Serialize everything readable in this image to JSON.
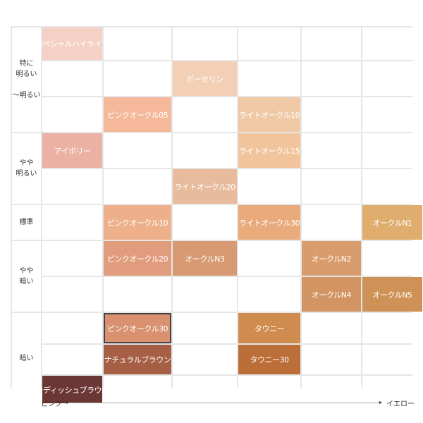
{
  "row_groups": [
    {
      "label": "特に\n明るい\n\n〜明るい",
      "rows": 3
    },
    {
      "label": "やや\n明るい",
      "rows": 2
    },
    {
      "label": "標準",
      "rows": 1
    },
    {
      "label": "やや\n暗い",
      "rows": 2
    },
    {
      "label": "暗い",
      "rows": 3
    }
  ],
  "grid_rows": [
    [
      {
        "name": "スペシャルハイライト",
        "color": "#f5d0c4"
      },
      null,
      null,
      null,
      null,
      null
    ],
    [
      null,
      null,
      {
        "name": "ポーセリン",
        "color": "#f3cfb5"
      },
      null,
      null,
      null
    ],
    [
      null,
      {
        "name": "ピンクオークル05",
        "color": "#f5b89a"
      },
      null,
      {
        "name": "ライトオークル10",
        "color": "#f0c8a6"
      },
      null,
      null
    ],
    [
      {
        "name": "アイボリー",
        "color": "#ebb1a2"
      },
      null,
      null,
      {
        "name": "ライトオークル15",
        "color": "#f2c49c"
      },
      null,
      null
    ],
    [
      null,
      null,
      {
        "name": "ライトオークル20",
        "color": "#e8bb9c"
      },
      null,
      null,
      null
    ],
    [
      null,
      {
        "name": "ピンクオークル10",
        "color": "#edb08a"
      },
      null,
      {
        "name": "ライトオークル30",
        "color": "#e9aa7c"
      },
      null,
      {
        "name": "オークルN1",
        "color": "#dfae6e"
      }
    ],
    [
      null,
      {
        "name": "ピンクオークル20",
        "color": "#e19c7d"
      },
      {
        "name": "オークルN3",
        "color": "#d89a72"
      },
      null,
      {
        "name": "オークルN2",
        "color": "#d99c6c"
      },
      null
    ],
    [
      null,
      null,
      null,
      null,
      {
        "name": "オークルN4",
        "color": "#d29462"
      },
      {
        "name": "オークルN5",
        "color": "#cf9256"
      }
    ],
    [
      null,
      {
        "name": "ピンクオークル30",
        "color": "#d99170",
        "selected": true
      },
      null,
      {
        "name": "タウニー",
        "color": "#d08c4e"
      },
      null,
      null
    ],
    [
      null,
      {
        "name": "ナチュラルブラウン",
        "color": "#a65f44"
      },
      null,
      {
        "name": "タウニー30",
        "color": "#bb6e38"
      },
      null,
      null
    ],
    [
      {
        "name": "レディッシュブラウン",
        "color": "#6b3735"
      },
      null,
      null,
      null,
      null,
      null
    ]
  ],
  "axis": {
    "left": "ピンク",
    "right": "イエロー"
  }
}
